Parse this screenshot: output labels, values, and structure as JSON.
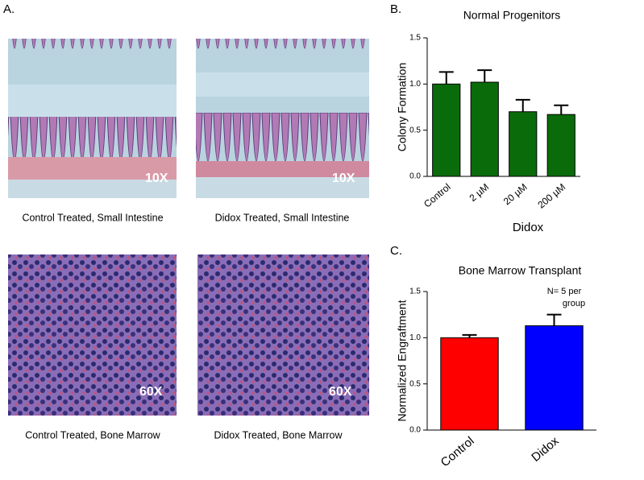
{
  "figure": {
    "panel_a": "A.",
    "panel_b": "B.",
    "panel_c": "C.",
    "images": [
      {
        "caption": "Control Treated, Small Intestine",
        "magnification": "10X"
      },
      {
        "caption": "Didox Treated, Small Intestine",
        "magnification": "10X"
      },
      {
        "caption": "Control Treated, Bone Marrow",
        "magnification": "60X"
      },
      {
        "caption": "Didox Treated, Bone Marrow",
        "magnification": "60X"
      }
    ]
  },
  "chart_data": [
    {
      "type": "bar",
      "title": "Normal Progenitors",
      "x_label": "Didox",
      "y_label": "Colony Formation",
      "categories": [
        "Control",
        "2 µM",
        "20 µM",
        "200 µM"
      ],
      "values": [
        1.0,
        1.02,
        0.7,
        0.67
      ],
      "errors": [
        0.13,
        0.13,
        0.13,
        0.1
      ],
      "color": "#0a6b0a",
      "ylim": [
        0,
        1.5
      ],
      "yticks": [
        {
          "value": 0,
          "label": "0.0"
        },
        {
          "value": 0.5,
          "label": "0.5"
        },
        {
          "value": 1,
          "label": "1.0"
        },
        {
          "value": 1.5,
          "label": "1.5"
        }
      ]
    },
    {
      "type": "bar",
      "title": "Bone Marrow Transplant",
      "y_label": "Normalized Engraftment",
      "annotation": [
        "N= 5 per",
        "group"
      ],
      "categories": [
        "Control",
        "Didox"
      ],
      "values": [
        1.0,
        1.13
      ],
      "errors": [
        0.03,
        0.12
      ],
      "colors": [
        "#ff0000",
        "#0000ff"
      ],
      "ylim": [
        0,
        1.5
      ],
      "yticks": [
        {
          "value": 0,
          "label": "0.0"
        },
        {
          "value": 0.5,
          "label": "0.5"
        },
        {
          "value": 1,
          "label": "1.0"
        },
        {
          "value": 1.5,
          "label": "1.5"
        }
      ]
    }
  ]
}
